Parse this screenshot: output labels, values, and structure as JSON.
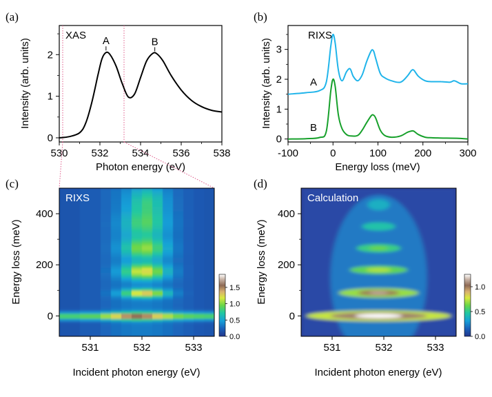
{
  "chart_data": [
    {
      "panel": "(a)",
      "type": "line",
      "title": "XAS",
      "xlabel": "Photon energy (eV)",
      "ylabel": "Intensity (arb. units)",
      "xlim": [
        530,
        538
      ],
      "ylim": [
        -0.1,
        2.7
      ],
      "xticks": [
        530,
        532,
        534,
        536,
        538
      ],
      "yticks": [
        0,
        1,
        2
      ],
      "series": [
        {
          "name": "XAS",
          "color": "#000000",
          "x": [
            530.0,
            530.5,
            531.0,
            531.3,
            531.6,
            531.9,
            532.1,
            532.3,
            532.5,
            532.8,
            533.1,
            533.4,
            533.7,
            534.0,
            534.3,
            534.6,
            534.8,
            535.1,
            535.5,
            536.0,
            536.5,
            537.0,
            537.5,
            538.0
          ],
          "y": [
            0.0,
            0.03,
            0.12,
            0.35,
            0.85,
            1.5,
            1.9,
            2.05,
            2.0,
            1.72,
            1.3,
            0.98,
            1.05,
            1.45,
            1.85,
            2.03,
            2.02,
            1.85,
            1.5,
            1.15,
            0.9,
            0.75,
            0.66,
            0.62
          ]
        }
      ],
      "annotations": [
        {
          "label": "A",
          "x": 532.3,
          "y": 2.05
        },
        {
          "label": "B",
          "x": 534.7,
          "y": 2.03
        }
      ],
      "markers": [
        530.4,
        533.4
      ]
    },
    {
      "panel": "(b)",
      "type": "line",
      "title": "RIXS",
      "xlabel": "Energy loss (meV)",
      "ylabel": "Intensity (arb. units)",
      "xlim": [
        -100,
        300
      ],
      "ylim": [
        -0.1,
        3.8
      ],
      "xticks": [
        -100,
        0,
        100,
        200,
        300
      ],
      "yticks": [
        0,
        1,
        2,
        3
      ],
      "series": [
        {
          "name": "A",
          "color": "#1fb4ea",
          "x": [
            -100,
            -60,
            -30,
            -15,
            -5,
            0,
            5,
            12,
            20,
            30,
            38,
            45,
            55,
            65,
            75,
            85,
            90,
            95,
            105,
            115,
            130,
            150,
            165,
            175,
            180,
            190,
            205,
            220,
            240,
            260,
            270,
            285,
            300
          ],
          "y": [
            1.5,
            1.55,
            1.62,
            1.9,
            3.1,
            3.5,
            3.2,
            2.3,
            1.95,
            2.25,
            2.35,
            2.1,
            1.95,
            2.15,
            2.6,
            2.95,
            2.95,
            2.7,
            2.2,
            2.05,
            1.95,
            1.9,
            2.1,
            2.3,
            2.3,
            2.1,
            1.95,
            1.92,
            1.92,
            1.9,
            1.95,
            1.85,
            1.85
          ]
        },
        {
          "name": "B",
          "color": "#16a02a",
          "x": [
            -100,
            -60,
            -30,
            -15,
            -5,
            0,
            5,
            12,
            20,
            30,
            40,
            55,
            65,
            75,
            85,
            90,
            95,
            105,
            115,
            130,
            150,
            165,
            175,
            180,
            190,
            205,
            220,
            250,
            280,
            300
          ],
          "y": [
            0.0,
            0.01,
            0.05,
            0.25,
            1.6,
            2.0,
            1.75,
            0.8,
            0.35,
            0.15,
            0.1,
            0.12,
            0.3,
            0.55,
            0.78,
            0.8,
            0.7,
            0.3,
            0.12,
            0.06,
            0.1,
            0.22,
            0.27,
            0.26,
            0.15,
            0.06,
            0.04,
            0.03,
            0.02,
            0.0
          ]
        }
      ],
      "series_labels": [
        "A",
        "B"
      ]
    },
    {
      "panel": "(c)",
      "type": "heatmap",
      "title": "RIXS",
      "xlabel": "Incident photon energy (eV)",
      "ylabel": "Energy loss (meV)",
      "xlim": [
        530.4,
        533.4
      ],
      "ylim": [
        -80,
        500
      ],
      "xticks": [
        531,
        532,
        533
      ],
      "yticks": [
        0,
        200,
        400
      ],
      "colorbar": {
        "min": 0.0,
        "max": 1.9,
        "ticks": [
          "0.0",
          "0.5",
          "1.0",
          "1.5"
        ]
      }
    },
    {
      "panel": "(d)",
      "type": "heatmap",
      "title": "Calculation",
      "xlabel": "Incident photon energy (eV)",
      "ylabel": "Energy loss (meV)",
      "xlim": [
        530.4,
        533.4
      ],
      "ylim": [
        -80,
        500
      ],
      "xticks": [
        531,
        532,
        533
      ],
      "yticks": [
        0,
        200,
        400
      ],
      "colorbar": {
        "min": 0.0,
        "max": 1.25,
        "ticks": [
          "0.0",
          "0.5",
          "1.0"
        ]
      }
    }
  ]
}
